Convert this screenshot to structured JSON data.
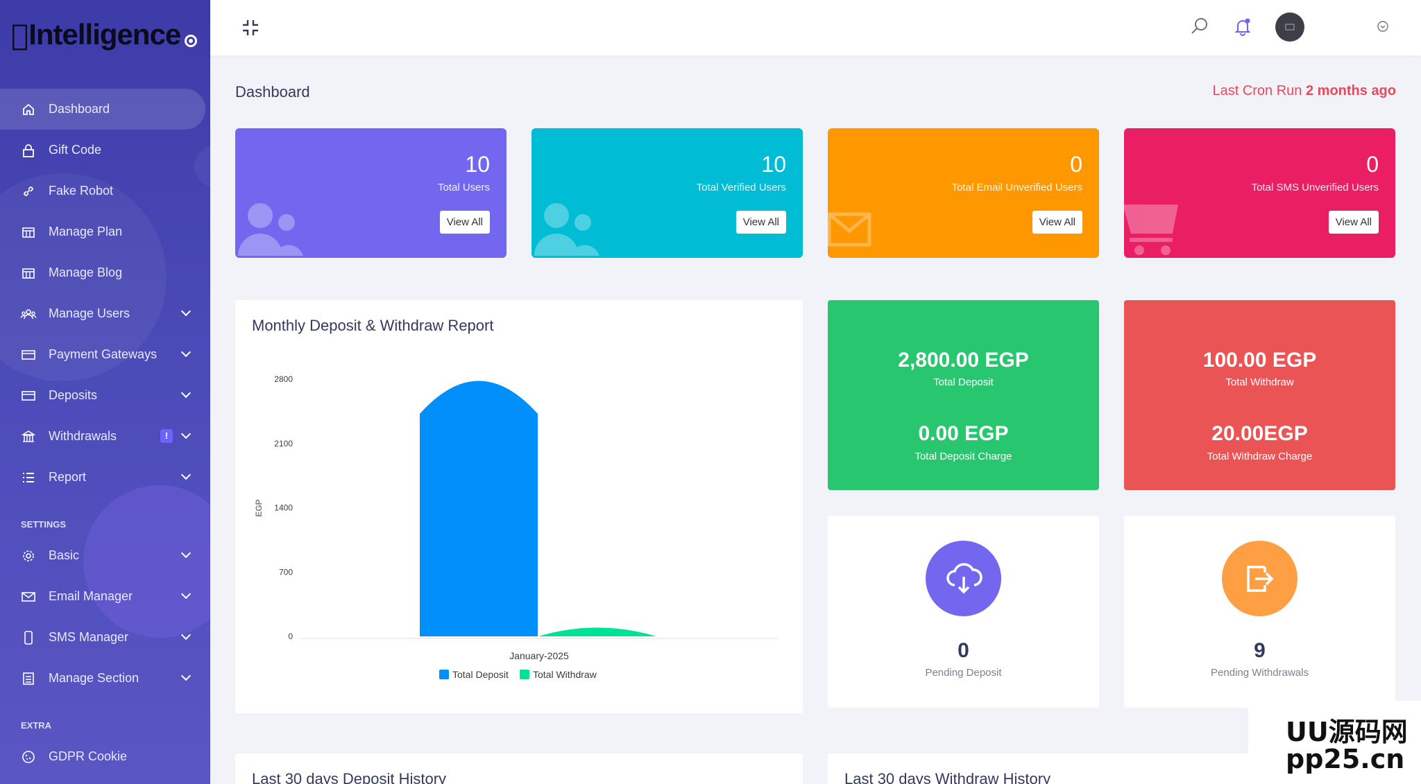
{
  "brand": {
    "logo_text": "Intelligence"
  },
  "sidebar": {
    "items": [
      {
        "label": "Dashboard",
        "icon": "home-icon"
      },
      {
        "label": "Gift Code",
        "icon": "lock-icon"
      },
      {
        "label": "Fake Robot",
        "icon": "link-icon"
      },
      {
        "label": "Manage Plan",
        "icon": "grid-icon"
      },
      {
        "label": "Manage Blog",
        "icon": "grid-icon"
      },
      {
        "label": "Manage Users",
        "icon": "users-icon"
      },
      {
        "label": "Payment Gateways",
        "icon": "card-icon"
      },
      {
        "label": "Deposits",
        "icon": "card-icon"
      },
      {
        "label": "Withdrawals",
        "icon": "bank-icon",
        "badge": "!"
      },
      {
        "label": "Report",
        "icon": "list-icon"
      }
    ],
    "settings_heading": "SETTINGS",
    "settings_items": [
      {
        "label": "Basic",
        "icon": "gear-icon"
      },
      {
        "label": "Email Manager",
        "icon": "mail-icon"
      },
      {
        "label": "SMS Manager",
        "icon": "mobile-icon"
      },
      {
        "label": "Manage Section",
        "icon": "section-icon"
      }
    ],
    "extra_heading": "EXTRA",
    "extra_items": [
      {
        "label": "GDPR Cookie",
        "icon": "cookie-icon"
      }
    ]
  },
  "header": {
    "page_title": "Dashboard",
    "cron_label": "Last Cron Run",
    "cron_value": "2 months ago"
  },
  "stats": [
    {
      "value": "10",
      "label": "Total Users",
      "button": "View All",
      "color": "#7367f0"
    },
    {
      "value": "10",
      "label": "Total Verified Users",
      "button": "View All",
      "color": "#00bcd4"
    },
    {
      "value": "0",
      "label": "Total Email Unverified Users",
      "button": "View All",
      "color": "#ff9800"
    },
    {
      "value": "0",
      "label": "Total SMS Unverified Users",
      "button": "View All",
      "color": "#e91e63"
    }
  ],
  "chart_card": {
    "title": "Monthly Deposit & Withdraw Report"
  },
  "chart_data": {
    "type": "bar",
    "categories": [
      "January-2025"
    ],
    "series": [
      {
        "name": "Total Deposit",
        "values": [
          2800
        ],
        "color": "#008ffb"
      },
      {
        "name": "Total Withdraw",
        "values": [
          100
        ],
        "color": "#00e396"
      }
    ],
    "ylabel": "EGP",
    "yticks": [
      "2800",
      "2100",
      "1400",
      "700",
      "0"
    ],
    "ylim": [
      0,
      2800
    ],
    "legend": "bottom"
  },
  "deposit_box": {
    "total": "2,800.00 EGP",
    "total_label": "Total Deposit",
    "charge": "0.00 EGP",
    "charge_label": "Total Deposit Charge",
    "color": "#28c76f"
  },
  "withdraw_box": {
    "total": "100.00 EGP",
    "total_label": "Total Withdraw",
    "charge": "20.00EGP",
    "charge_label": "Total Withdraw Charge",
    "color": "#ea5455"
  },
  "pending": [
    {
      "value": "0",
      "label": "Pending Deposit",
      "color": "#7367f0"
    },
    {
      "value": "9",
      "label": "Pending Withdrawals",
      "color": "#ff9f43"
    }
  ],
  "history": {
    "deposit_title": "Last 30 days Deposit History",
    "withdraw_title": "Last 30 days Withdraw History"
  },
  "watermark": {
    "line1": "UU源码网",
    "line2": "pp25.cn"
  }
}
